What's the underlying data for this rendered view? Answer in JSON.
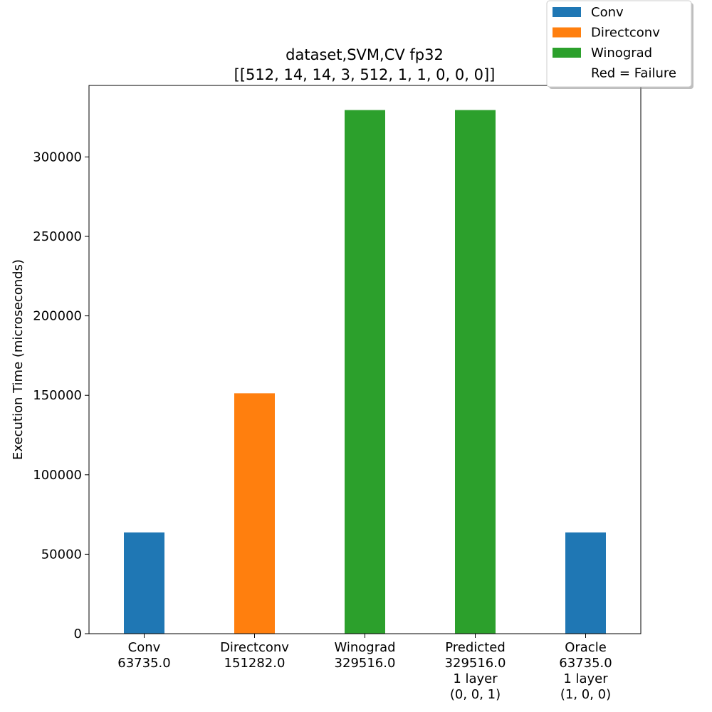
{
  "chart_data": {
    "type": "bar",
    "title": [
      "dataset,SVM,CV fp32",
      "[[512, 14, 14, 3, 512, 1, 1, 0, 0, 0]]"
    ],
    "xlabel": "",
    "ylabel": "Execution Time (microseconds)",
    "ylim": [
      0,
      345000
    ],
    "yticks": [
      0,
      50000,
      100000,
      150000,
      200000,
      250000,
      300000
    ],
    "categories": [
      [
        "Conv",
        "63735.0"
      ],
      [
        "Directconv",
        "151282.0"
      ],
      [
        "Winograd",
        "329516.0"
      ],
      [
        "Predicted",
        "329516.0",
        "1 layer",
        "(0, 0, 1)"
      ],
      [
        "Oracle",
        "63735.0",
        "1 layer",
        "(1, 0, 0)"
      ]
    ],
    "values": [
      63735.0,
      151282.0,
      329516.0,
      329516.0,
      63735.0
    ],
    "bar_colors": [
      "#1f77b4",
      "#ff7f0e",
      "#2ca02c",
      "#2ca02c",
      "#1f77b4"
    ],
    "grid": false,
    "legend": {
      "placement": "top-right",
      "entries": [
        {
          "label": "Conv",
          "color": "#1f77b4"
        },
        {
          "label": "Directconv",
          "color": "#ff7f0e"
        },
        {
          "label": "Winograd",
          "color": "#2ca02c"
        },
        {
          "label": "Red = Failure",
          "color": ""
        }
      ]
    }
  }
}
